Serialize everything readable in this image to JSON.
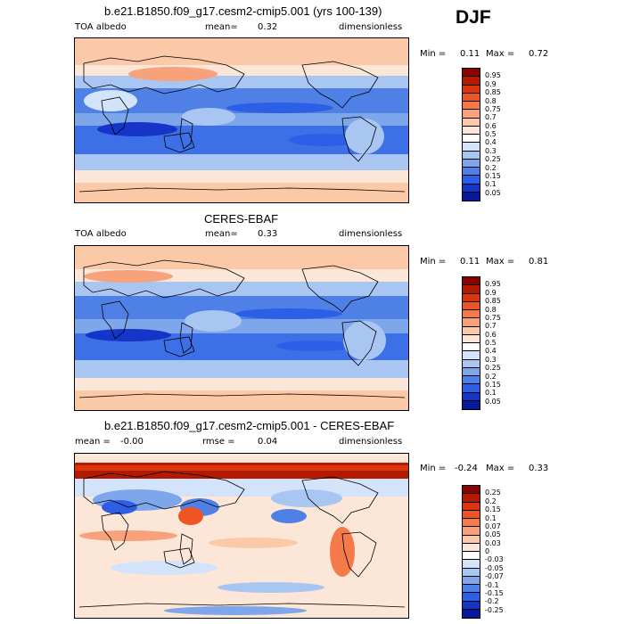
{
  "season": "DJF",
  "panels": [
    {
      "title": "b.e21.B1850.f09_g17.cesm2-cmip5.001 (yrs 100-139)",
      "left_label": "TOA albedo",
      "stat_label": "mean=",
      "stat_value": "0.32",
      "units": "dimensionless",
      "min_label": "Min =",
      "min_value": "0.11",
      "max_label": "Max =",
      "max_value": "0.72"
    },
    {
      "title": "CERES-EBAF",
      "left_label": "TOA albedo",
      "stat_label": "mean=",
      "stat_value": "0.33",
      "units": "dimensionless",
      "min_label": "Min =",
      "min_value": "0.11",
      "max_label": "Max =",
      "max_value": "0.81"
    },
    {
      "title": "b.e21.B1850.f09_g17.cesm2-cmip5.001 - CERES-EBAF",
      "left_label": "mean =",
      "left_value": "-0.00",
      "stat_label": "rmse =",
      "stat_value": "0.04",
      "units": "dimensionless",
      "min_label": "Min =",
      "min_value": "-0.24",
      "max_label": "Max =",
      "max_value": "0.33"
    }
  ],
  "colorbars": {
    "abs_levels": [
      "0.95",
      "0.9",
      "0.85",
      "0.8",
      "0.75",
      "0.7",
      "0.6",
      "0.5",
      "0.4",
      "0.3",
      "0.25",
      "0.2",
      "0.15",
      "0.1",
      "0.05"
    ],
    "abs_colors": [
      "#8b0000",
      "#b31a00",
      "#d93510",
      "#ee5522",
      "#f57a4a",
      "#f7a27a",
      "#fbc8a8",
      "#fce6d8",
      "#ffffff",
      "#d3e3f9",
      "#a8c6f1",
      "#7ea6ea",
      "#4f80e6",
      "#2d5ee6",
      "#1535c9",
      "#08189a"
    ],
    "diff_levels": [
      "0.25",
      "0.2",
      "0.15",
      "0.1",
      "0.07",
      "0.05",
      "0.03",
      "0",
      "-0.03",
      "-0.05",
      "-0.07",
      "-0.1",
      "-0.15",
      "-0.2",
      "-0.25"
    ],
    "diff_colors": [
      "#8b0000",
      "#b31a00",
      "#d93510",
      "#ee5522",
      "#f57a4a",
      "#f7a27a",
      "#fbc8a8",
      "#fce6d8",
      "#ffffff",
      "#d3e3f9",
      "#a8c6f1",
      "#7ea6ea",
      "#4f80e6",
      "#2d5ee6",
      "#1535c9",
      "#08189a"
    ]
  },
  "chart_data": [
    {
      "type": "heatmap",
      "title": "b.e21.B1850.f09_g17.cesm2-cmip5.001 (yrs 100-139)",
      "variable": "TOA albedo",
      "units": "dimensionless",
      "mean": 0.32,
      "min": 0.11,
      "max": 0.72,
      "contour_levels": [
        0.05,
        0.1,
        0.15,
        0.2,
        0.25,
        0.3,
        0.4,
        0.5,
        0.6,
        0.7,
        0.75,
        0.8,
        0.85,
        0.9,
        0.95
      ]
    },
    {
      "type": "heatmap",
      "title": "CERES-EBAF",
      "variable": "TOA albedo",
      "units": "dimensionless",
      "mean": 0.33,
      "min": 0.11,
      "max": 0.81,
      "contour_levels": [
        0.05,
        0.1,
        0.15,
        0.2,
        0.25,
        0.3,
        0.4,
        0.5,
        0.6,
        0.7,
        0.75,
        0.8,
        0.85,
        0.9,
        0.95
      ]
    },
    {
      "type": "heatmap",
      "title": "b.e21.B1850.f09_g17.cesm2-cmip5.001 - CERES-EBAF",
      "units": "dimensionless",
      "mean": -0.0,
      "rmse": 0.04,
      "min": -0.24,
      "max": 0.33,
      "contour_levels": [
        -0.25,
        -0.2,
        -0.15,
        -0.1,
        -0.07,
        -0.05,
        -0.03,
        0,
        0.03,
        0.05,
        0.07,
        0.1,
        0.15,
        0.2,
        0.25
      ]
    }
  ]
}
